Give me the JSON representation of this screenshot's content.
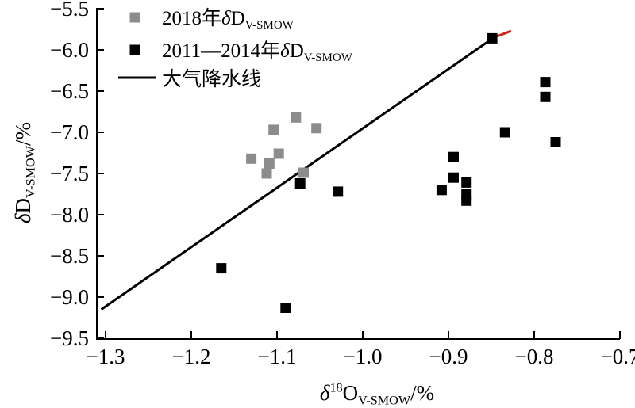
{
  "chart_data": {
    "type": "scatter",
    "title": "",
    "xlabel": "δ18O V-SMOW /%",
    "ylabel": "δD V-SMOW /%",
    "xlabel_parts": [
      {
        "t": "δ",
        "i": true
      },
      {
        "t": "18",
        "sup": true
      },
      {
        "t": "O"
      },
      {
        "t": "V-SMOW",
        "sub": true
      },
      {
        "t": "/%"
      }
    ],
    "ylabel_parts": [
      {
        "t": "δ",
        "i": true
      },
      {
        "t": "D"
      },
      {
        "t": "V-SMOW",
        "sub": true
      },
      {
        "t": "/%"
      }
    ],
    "xlim": [
      -1.31,
      -0.7
    ],
    "ylim": [
      -9.51,
      -5.49
    ],
    "x_ticks": [
      -1.3,
      -1.2,
      -1.1,
      -1.0,
      -0.9,
      -0.8,
      -0.7
    ],
    "x_tick_labels": [
      "−1.3",
      "−1.2",
      "−1.1",
      "−1.0",
      "−0.9",
      "−0.8",
      "−0.7"
    ],
    "y_ticks": [
      -5.5,
      -6.0,
      -6.5,
      -7.0,
      -7.5,
      -8.0,
      -8.5,
      -9.0,
      -9.5
    ],
    "y_tick_labels": [
      "−5.5",
      "−6.0",
      "−6.5",
      "−7.0",
      "−7.5",
      "−8.0",
      "−8.5",
      "−9.0",
      "−9.5"
    ],
    "grid": false,
    "legend_position": "upper-left-inside",
    "series": [
      {
        "name": "2018年δD V-SMOW",
        "marker": "square",
        "color": "#8c8c8c",
        "points": [
          [
            -1.078,
            -6.82
          ],
          [
            -1.104,
            -6.97
          ],
          [
            -1.054,
            -6.95
          ],
          [
            -1.13,
            -7.32
          ],
          [
            -1.098,
            -7.26
          ],
          [
            -1.109,
            -7.38
          ],
          [
            -1.112,
            -7.5
          ],
          [
            -1.069,
            -7.49
          ]
        ]
      },
      {
        "name": "2011—2014年δD V-SMOW",
        "marker": "square",
        "color": "#000000",
        "points": [
          [
            -0.849,
            -5.86
          ],
          [
            -0.787,
            -6.39
          ],
          [
            -0.787,
            -6.57
          ],
          [
            -0.834,
            -7.0
          ],
          [
            -0.775,
            -7.12
          ],
          [
            -0.894,
            -7.3
          ],
          [
            -0.894,
            -7.55
          ],
          [
            -0.879,
            -7.61
          ],
          [
            -0.908,
            -7.7
          ],
          [
            -0.879,
            -7.75
          ],
          [
            -0.879,
            -7.83
          ],
          [
            -1.073,
            -7.62
          ],
          [
            -1.029,
            -7.72
          ],
          [
            -1.165,
            -8.65
          ],
          [
            -1.09,
            -9.13
          ]
        ]
      }
    ],
    "line": {
      "name": "大气降水线",
      "color": "#000000",
      "from": [
        -1.305,
        -9.15
      ],
      "to": [
        -0.847,
        -5.85
      ],
      "tip_to": [
        -0.827,
        -5.77
      ],
      "tip_color": "#d02318"
    },
    "legend": [
      {
        "type": "marker",
        "color": "#8c8c8c",
        "label_parts": [
          {
            "t": "2018年"
          },
          {
            "t": "δ",
            "i": true
          },
          {
            "t": "D"
          },
          {
            "t": "V-SMOW",
            "sub": true
          }
        ]
      },
      {
        "type": "marker",
        "color": "#000000",
        "label_parts": [
          {
            "t": "2011—2014年"
          },
          {
            "t": "δ",
            "i": true
          },
          {
            "t": "D"
          },
          {
            "t": "V-SMOW",
            "sub": true
          }
        ]
      },
      {
        "type": "line",
        "color": "#000000",
        "label_parts": [
          {
            "t": "大气降水线"
          }
        ]
      }
    ],
    "colors": {
      "axis": "#000000",
      "series_2018": "#8c8c8c",
      "series_2011_2014": "#000000",
      "mwl_line": "#000000",
      "mwl_tip": "#d02318",
      "background": "#ffffff"
    }
  }
}
